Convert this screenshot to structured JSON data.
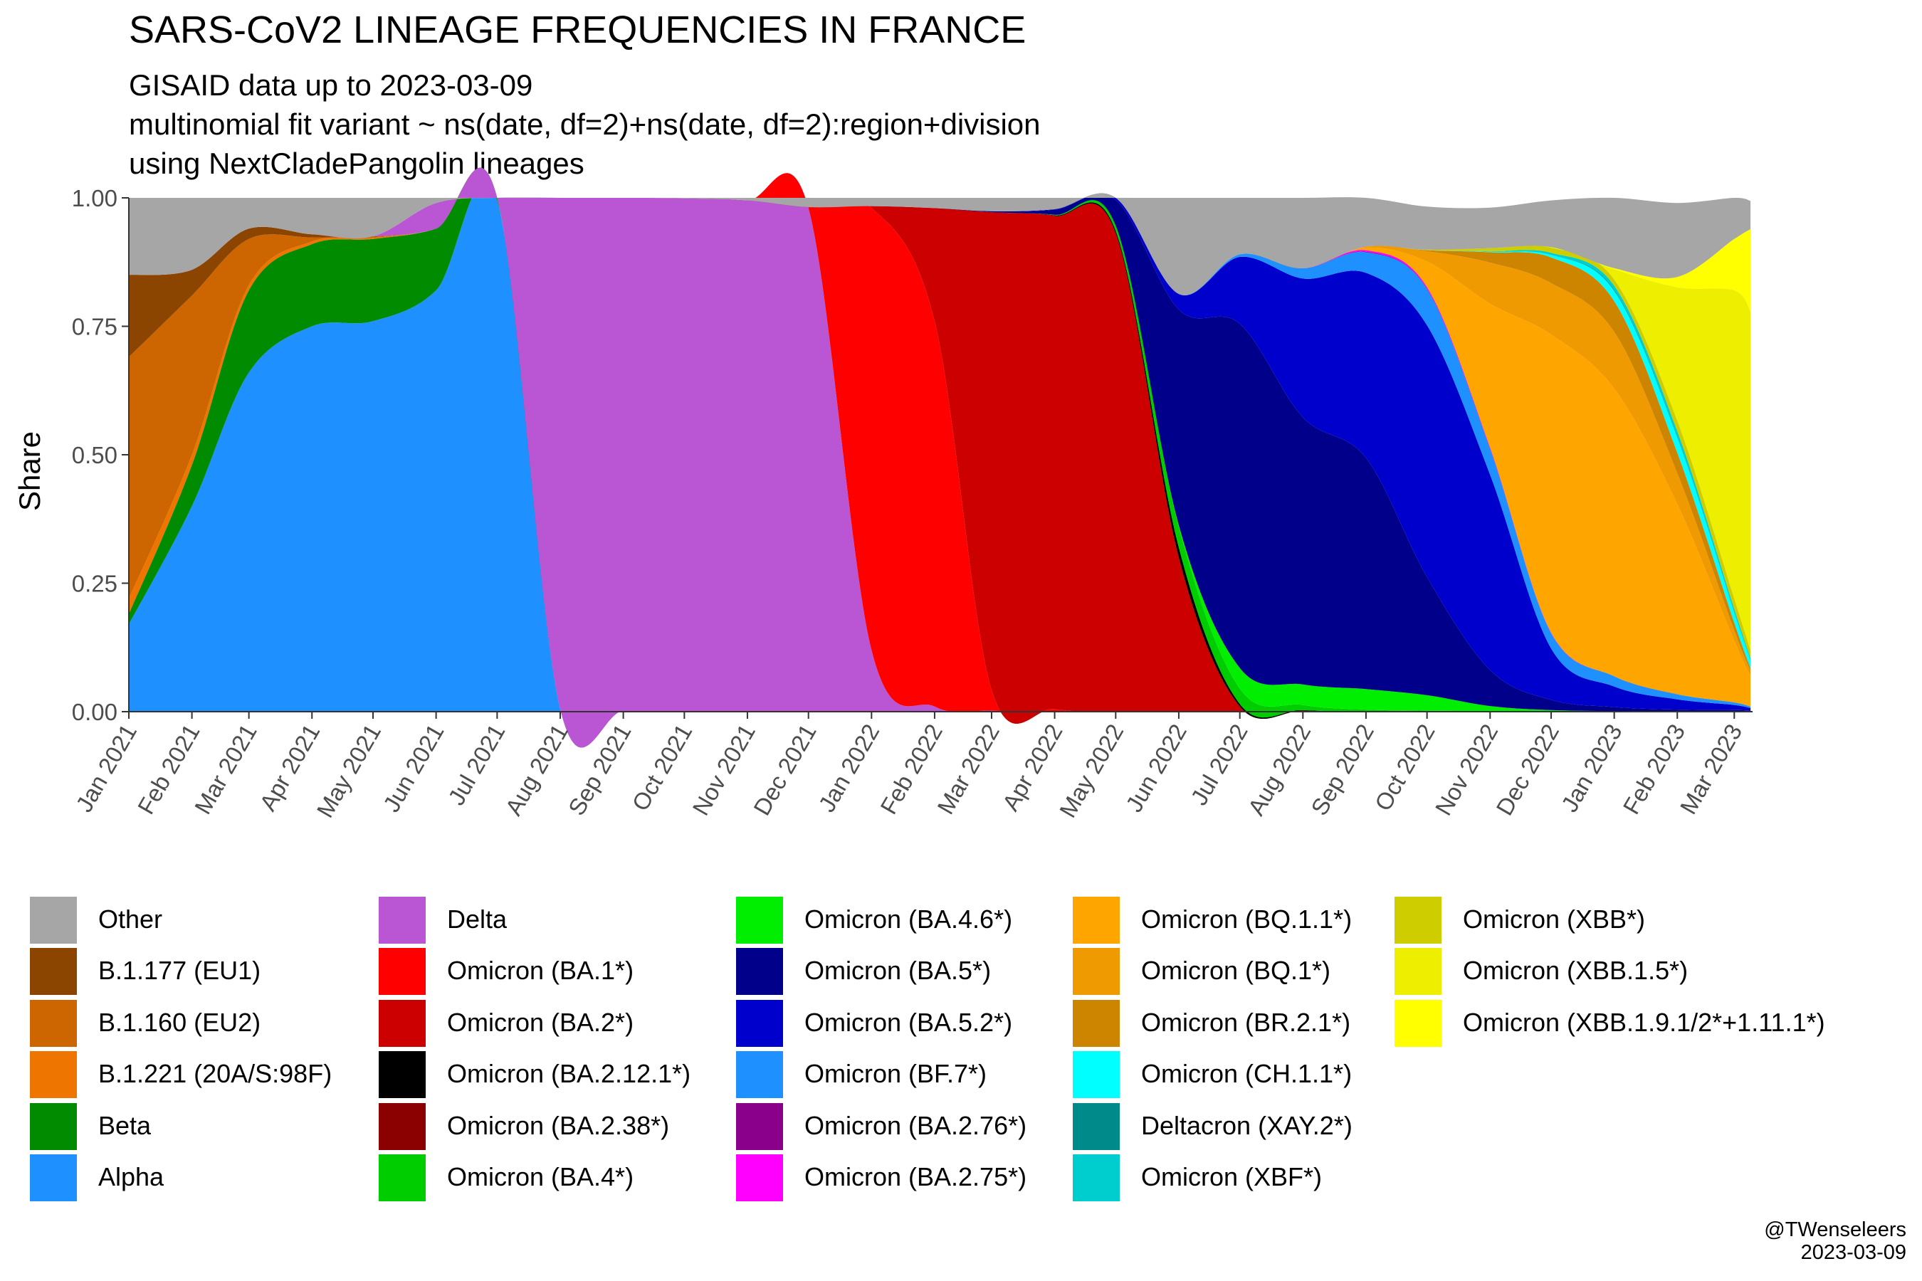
{
  "chart_data": {
    "type": "area",
    "stacked": true,
    "normalized": true,
    "title": "SARS-CoV2 LINEAGE FREQUENCIES IN FRANCE",
    "subtitle": [
      "GISAID data up to 2023-03-09",
      "multinomial fit variant ~ ns(date, df=2)+ns(date, df=2):region+division",
      "using NextCladePangolin lineages"
    ],
    "xlabel": "",
    "ylabel": "Share",
    "ylim": [
      0,
      1
    ],
    "y_ticks": [
      "0.00",
      "0.25",
      "0.50",
      "0.75",
      "1.00"
    ],
    "xlim": [
      "2021-01-01",
      "2023-03-10"
    ],
    "x_tick_labels": [
      "Jan 2021",
      "Feb 2021",
      "Mar 2021",
      "Apr 2021",
      "May 2021",
      "Jun 2021",
      "Jul 2021",
      "Aug 2021",
      "Sep 2021",
      "Oct 2021",
      "Nov 2021",
      "Dec 2021",
      "Jan 2022",
      "Feb 2022",
      "Mar 2022",
      "Apr 2022",
      "May 2022",
      "Jun 2022",
      "Jul 2022",
      "Aug 2022",
      "Sep 2022",
      "Oct 2022",
      "Nov 2022",
      "Dec 2022",
      "Jan 2023",
      "Feb 2023",
      "Mar 2023"
    ],
    "x_tick_dates": [
      "2021-01-01",
      "2021-02-01",
      "2021-03-01",
      "2021-04-01",
      "2021-05-01",
      "2021-06-01",
      "2021-07-01",
      "2021-08-01",
      "2021-09-01",
      "2021-10-01",
      "2021-11-01",
      "2021-12-01",
      "2022-01-01",
      "2022-02-01",
      "2022-03-01",
      "2022-04-01",
      "2022-05-01",
      "2022-06-01",
      "2022-07-01",
      "2022-08-01",
      "2022-09-01",
      "2022-10-01",
      "2022-11-01",
      "2022-12-01",
      "2023-01-01",
      "2023-02-01",
      "2023-03-01"
    ],
    "x": [
      "2021-01-01",
      "2021-02-01",
      "2021-03-01",
      "2021-04-01",
      "2021-05-01",
      "2021-06-01",
      "2021-07-01",
      "2021-08-01",
      "2021-09-01",
      "2021-10-01",
      "2021-11-01",
      "2021-12-01",
      "2022-01-01",
      "2022-02-01",
      "2022-03-01",
      "2022-04-01",
      "2022-05-01",
      "2022-06-01",
      "2022-07-01",
      "2022-08-01",
      "2022-09-01",
      "2022-10-01",
      "2022-11-01",
      "2022-12-01",
      "2023-01-01",
      "2023-02-01",
      "2023-03-01",
      "2023-03-09"
    ],
    "grid": false,
    "legend_position": "bottom",
    "legend_columns": 5,
    "series": [
      {
        "name": "Alpha",
        "color": "#1E90FF",
        "values": [
          0.17,
          0.4,
          0.66,
          0.75,
          0.76,
          0.82,
          0.995,
          0.005,
          0.001,
          0,
          0,
          0,
          0,
          0,
          0,
          0,
          0,
          0,
          0,
          0,
          0,
          0,
          0,
          0,
          0,
          0,
          0,
          0
        ]
      },
      {
        "name": "Beta",
        "color": "#008B00",
        "values": [
          0.02,
          0.08,
          0.16,
          0.16,
          0.16,
          0.12,
          0.005,
          0,
          0,
          0,
          0,
          0,
          0,
          0,
          0,
          0,
          0,
          0,
          0,
          0,
          0,
          0,
          0,
          0,
          0,
          0,
          0,
          0
        ]
      },
      {
        "name": "B.1.221 (20A/S:98F)",
        "color": "#EE7600",
        "values": [
          0.03,
          0.02,
          0.01,
          0.005,
          0.002,
          0,
          0,
          0,
          0,
          0,
          0,
          0,
          0,
          0,
          0,
          0,
          0,
          0,
          0,
          0,
          0,
          0,
          0,
          0,
          0,
          0,
          0,
          0
        ]
      },
      {
        "name": "B.1.160 (EU2)",
        "color": "#CD6600",
        "values": [
          0.47,
          0.31,
          0.09,
          0.008,
          0.002,
          0,
          0,
          0,
          0,
          0,
          0,
          0,
          0,
          0,
          0,
          0,
          0,
          0,
          0,
          0,
          0,
          0,
          0,
          0,
          0,
          0,
          0,
          0
        ]
      },
      {
        "name": "B.1.177 (EU1)",
        "color": "#8B4500",
        "values": [
          0.16,
          0.05,
          0.02,
          0.006,
          0.001,
          0,
          0,
          0,
          0,
          0,
          0,
          0,
          0,
          0,
          0,
          0,
          0,
          0,
          0,
          0,
          0,
          0,
          0,
          0,
          0,
          0,
          0,
          0
        ]
      },
      {
        "name": "Delta",
        "color": "#BA55D3",
        "values": [
          0,
          0,
          0,
          0,
          0,
          0.05,
          0.985,
          0.995,
          0.999,
          0.999,
          0.995,
          0.98,
          0.12,
          0.01,
          0.002,
          0,
          0,
          0,
          0,
          0,
          0,
          0,
          0,
          0,
          0,
          0,
          0,
          0
        ]
      },
      {
        "name": "Omicron (BA.1*)",
        "color": "#FF0000",
        "values": [
          0,
          0,
          0,
          0,
          0,
          0,
          0,
          0,
          0,
          0,
          0,
          0.002,
          0.86,
          0.75,
          0.04,
          0.005,
          0.001,
          0,
          0,
          0,
          0,
          0,
          0,
          0,
          0,
          0,
          0,
          0
        ]
      },
      {
        "name": "Omicron (BA.2*)",
        "color": "#CD0000",
        "values": [
          0,
          0,
          0,
          0,
          0,
          0,
          0,
          0,
          0,
          0,
          0,
          0,
          0.004,
          0.22,
          0.93,
          0.96,
          0.93,
          0.3,
          0.01,
          0.002,
          0,
          0,
          0,
          0,
          0,
          0,
          0,
          0
        ]
      },
      {
        "name": "Omicron (BA.2.12.1*)",
        "color": "#000000",
        "values": [
          0,
          0,
          0,
          0,
          0,
          0,
          0,
          0,
          0,
          0,
          0,
          0,
          0,
          0,
          0,
          0.001,
          0.005,
          0.02,
          0.005,
          0.001,
          0,
          0,
          0,
          0,
          0,
          0,
          0,
          0
        ]
      },
      {
        "name": "Omicron (BA.2.38*)",
        "color": "#8B0000",
        "values": [
          0,
          0,
          0,
          0,
          0,
          0,
          0,
          0,
          0,
          0,
          0,
          0,
          0,
          0,
          0,
          0,
          0,
          0,
          0,
          0,
          0,
          0,
          0,
          0,
          0,
          0,
          0,
          0
        ]
      },
      {
        "name": "Omicron (BA.4*)",
        "color": "#00CD00",
        "values": [
          0,
          0,
          0,
          0,
          0,
          0,
          0,
          0,
          0,
          0,
          0,
          0,
          0,
          0,
          0,
          0.001,
          0.01,
          0.04,
          0.03,
          0.01,
          0.004,
          0.002,
          0.001,
          0,
          0,
          0,
          0,
          0
        ]
      },
      {
        "name": "Omicron (BA.4.6*)",
        "color": "#00EE00",
        "values": [
          0,
          0,
          0,
          0,
          0,
          0,
          0,
          0,
          0,
          0,
          0,
          0,
          0,
          0,
          0,
          0,
          0,
          0.003,
          0.04,
          0.04,
          0.04,
          0.03,
          0.01,
          0.003,
          0.001,
          0,
          0,
          0
        ]
      },
      {
        "name": "Omicron (BA.5*)",
        "color": "#00008B",
        "values": [
          0,
          0,
          0,
          0,
          0,
          0,
          0,
          0,
          0,
          0,
          0,
          0,
          0,
          0,
          0.002,
          0.01,
          0.05,
          0.42,
          0.67,
          0.52,
          0.45,
          0.23,
          0.07,
          0.02,
          0.008,
          0.004,
          0.003,
          0.002
        ]
      },
      {
        "name": "Omicron (BA.5.2*)",
        "color": "#0000CD",
        "values": [
          0,
          0,
          0,
          0,
          0,
          0,
          0,
          0,
          0,
          0,
          0,
          0,
          0,
          0,
          0,
          0.001,
          0.005,
          0.03,
          0.13,
          0.27,
          0.36,
          0.49,
          0.38,
          0.1,
          0.04,
          0.02,
          0.01,
          0.005
        ]
      },
      {
        "name": "Omicron (BF.7*)",
        "color": "#1E90FF",
        "values": [
          0,
          0,
          0,
          0,
          0,
          0,
          0,
          0,
          0,
          0,
          0,
          0,
          0,
          0,
          0,
          0,
          0,
          0,
          0.005,
          0.02,
          0.04,
          0.07,
          0.05,
          0.03,
          0.02,
          0.01,
          0.005,
          0.003
        ]
      },
      {
        "name": "Omicron (BA.2.76*)",
        "color": "#8B008B",
        "values": [
          0,
          0,
          0,
          0,
          0,
          0,
          0,
          0,
          0,
          0,
          0,
          0,
          0,
          0,
          0,
          0,
          0,
          0,
          0,
          0,
          0.001,
          0.001,
          0.001,
          0,
          0,
          0,
          0,
          0
        ]
      },
      {
        "name": "Omicron (BA.2.75*)",
        "color": "#FF00FF",
        "values": [
          0,
          0,
          0,
          0,
          0,
          0,
          0,
          0,
          0,
          0,
          0,
          0,
          0,
          0,
          0,
          0,
          0,
          0,
          0,
          0,
          0.003,
          0.003,
          0.002,
          0.001,
          0,
          0,
          0,
          0
        ]
      },
      {
        "name": "Omicron (BQ.1.1*)",
        "color": "#FFA500",
        "values": [
          0,
          0,
          0,
          0,
          0,
          0,
          0,
          0,
          0,
          0,
          0,
          0,
          0,
          0,
          0,
          0,
          0,
          0,
          0,
          0,
          0.005,
          0.05,
          0.28,
          0.58,
          0.56,
          0.37,
          0.12,
          0.06
        ]
      },
      {
        "name": "Omicron (BQ.1*)",
        "color": "#EE9A00",
        "values": [
          0,
          0,
          0,
          0,
          0,
          0,
          0,
          0,
          0,
          0,
          0,
          0,
          0,
          0,
          0,
          0,
          0,
          0,
          0,
          0,
          0.002,
          0.02,
          0.08,
          0.1,
          0.11,
          0.06,
          0.02,
          0.01
        ]
      },
      {
        "name": "Omicron (BR.2.1*)",
        "color": "#CD8500",
        "values": [
          0,
          0,
          0,
          0,
          0,
          0,
          0,
          0,
          0,
          0,
          0,
          0,
          0,
          0,
          0,
          0,
          0,
          0,
          0,
          0,
          0,
          0.002,
          0.02,
          0.05,
          0.06,
          0.04,
          0.015,
          0.005
        ]
      },
      {
        "name": "Omicron (CH.1.1*)",
        "color": "#00FFFF",
        "values": [
          0,
          0,
          0,
          0,
          0,
          0,
          0,
          0,
          0,
          0,
          0,
          0,
          0,
          0,
          0,
          0,
          0,
          0,
          0,
          0,
          0,
          0,
          0.001,
          0.005,
          0.02,
          0.03,
          0.02,
          0.015
        ]
      },
      {
        "name": "Deltacron (XAY.2*)",
        "color": "#008B8B",
        "values": [
          0,
          0,
          0,
          0,
          0,
          0,
          0,
          0,
          0,
          0,
          0,
          0,
          0,
          0,
          0,
          0,
          0,
          0,
          0,
          0,
          0,
          0,
          0,
          0,
          0.002,
          0.002,
          0.001,
          0
        ]
      },
      {
        "name": "Omicron (XBF*)",
        "color": "#00CDCD",
        "values": [
          0,
          0,
          0,
          0,
          0,
          0,
          0,
          0,
          0,
          0,
          0,
          0,
          0,
          0,
          0,
          0,
          0,
          0,
          0,
          0,
          0,
          0,
          0.001,
          0.004,
          0.008,
          0.01,
          0.006,
          0.004
        ]
      },
      {
        "name": "Omicron (XBB*)",
        "color": "#CDCD00",
        "values": [
          0,
          0,
          0,
          0,
          0,
          0,
          0,
          0,
          0,
          0,
          0,
          0,
          0,
          0,
          0,
          0,
          0,
          0,
          0,
          0,
          0,
          0.001,
          0.006,
          0.01,
          0.012,
          0.02,
          0.02,
          0.015
        ]
      },
      {
        "name": "Omicron (XBB.1.5*)",
        "color": "#EEEE00",
        "values": [
          0,
          0,
          0,
          0,
          0,
          0,
          0,
          0,
          0,
          0,
          0,
          0,
          0,
          0,
          0,
          0,
          0,
          0,
          0,
          0,
          0,
          0,
          0,
          0.001,
          0.02,
          0.26,
          0.6,
          0.66
        ]
      },
      {
        "name": "Omicron (XBB.1.9.1/2*+1.11.1*)",
        "color": "#FFFF00",
        "values": [
          0,
          0,
          0,
          0,
          0,
          0,
          0,
          0,
          0,
          0,
          0,
          0,
          0,
          0,
          0,
          0,
          0,
          0,
          0,
          0,
          0,
          0,
          0,
          0,
          0.002,
          0.02,
          0.1,
          0.16
        ]
      },
      {
        "name": "Other",
        "color": "#A6A6A6",
        "values": [
          0.15,
          0.14,
          0.06,
          0.073,
          0.075,
          0.01,
          0.005,
          0,
          0,
          0.001,
          0.005,
          0.018,
          0.016,
          0.02,
          0.028,
          0.023,
          0.009,
          0.187,
          0.11,
          0.137,
          0.095,
          0.084,
          0.079,
          0.091,
          0.139,
          0.144,
          0.083,
          0.055
        ]
      }
    ]
  },
  "legend": {
    "columns": [
      [
        "Other",
        "B.1.177 (EU1)",
        "B.1.160 (EU2)",
        "B.1.221 (20A/S:98F)",
        "Beta",
        "Alpha"
      ],
      [
        "Delta",
        "Omicron (BA.1*)",
        "Omicron (BA.2*)",
        "Omicron (BA.2.12.1*)",
        "Omicron (BA.2.38*)",
        "Omicron (BA.4*)"
      ],
      [
        "Omicron (BA.4.6*)",
        "Omicron (BA.5*)",
        "Omicron (BA.5.2*)",
        "Omicron (BF.7*)",
        "Omicron (BA.2.76*)",
        "Omicron (BA.2.75*)"
      ],
      [
        "Omicron (BQ.1.1*)",
        "Omicron (BQ.1*)",
        "Omicron (BR.2.1*)",
        "Omicron (CH.1.1*)",
        "Deltacron (XAY.2*)",
        "Omicron (XBF*)"
      ],
      [
        "Omicron (XBB*)",
        "Omicron (XBB.1.5*)",
        "Omicron (XBB.1.9.1/2*+1.11.1*)"
      ]
    ],
    "colors": {
      "Other": "#A6A6A6",
      "B.1.177 (EU1)": "#8B4500",
      "B.1.160 (EU2)": "#CD6600",
      "B.1.221 (20A/S:98F)": "#EE7600",
      "Beta": "#008B00",
      "Alpha": "#1E90FF",
      "Delta": "#BA55D3",
      "Omicron (BA.1*)": "#FF0000",
      "Omicron (BA.2*)": "#CD0000",
      "Omicron (BA.2.12.1*)": "#000000",
      "Omicron (BA.2.38*)": "#8B0000",
      "Omicron (BA.4*)": "#00CD00",
      "Omicron (BA.4.6*)": "#00EE00",
      "Omicron (BA.5*)": "#00008B",
      "Omicron (BA.5.2*)": "#0000CD",
      "Omicron (BF.7*)": "#1E90FF",
      "Omicron (BA.2.76*)": "#8B008B",
      "Omicron (BA.2.75*)": "#FF00FF",
      "Omicron (BQ.1.1*)": "#FFA500",
      "Omicron (BQ.1*)": "#EE9A00",
      "Omicron (BR.2.1*)": "#CD8500",
      "Omicron (CH.1.1*)": "#00FFFF",
      "Deltacron (XAY.2*)": "#008B8B",
      "Omicron (XBF*)": "#00CDCD",
      "Omicron (XBB*)": "#CDCD00",
      "Omicron (XBB.1.5*)": "#EEEE00",
      "Omicron (XBB.1.9.1/2*+1.11.1*)": "#FFFF00"
    }
  },
  "credit": {
    "author": "@TWenseleers",
    "date": "2023-03-09"
  }
}
